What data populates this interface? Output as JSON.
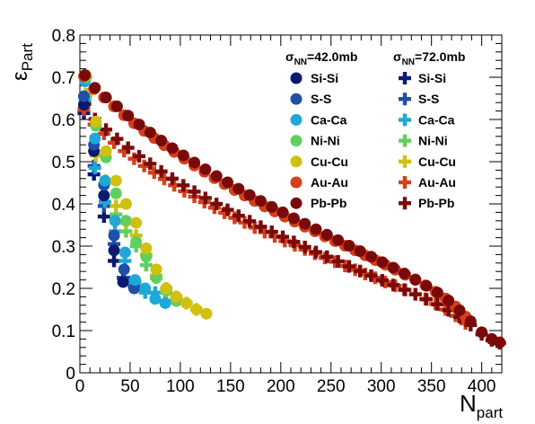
{
  "chart_data": {
    "type": "scatter",
    "xlabel_main": "N",
    "xlabel_sub": "part",
    "ylabel_main": "ε",
    "ylabel_sub": "Part",
    "xlim": [
      0,
      420
    ],
    "ylim": [
      0,
      0.8
    ],
    "xticks": [
      0,
      50,
      100,
      150,
      200,
      250,
      300,
      350,
      400
    ],
    "yticks": [
      0,
      0.1,
      0.2,
      0.3,
      0.4,
      0.5,
      0.6,
      0.7,
      0.8
    ],
    "legend_position": "top-right",
    "legend_groups": [
      {
        "head_main": "σ",
        "head_sub": "NN",
        "head_rest": "=42.0mb",
        "marker": "circle"
      },
      {
        "head_main": "σ",
        "head_sub": "NN",
        "head_rest": "=72.0mb",
        "marker": "cross"
      }
    ],
    "series": [
      {
        "name": "Si-Si",
        "color": "#0b1a6e",
        "circle": [
          [
            4,
            0.635
          ],
          [
            14,
            0.525
          ],
          [
            24,
            0.42
          ],
          [
            34,
            0.29
          ],
          [
            43,
            0.215
          ]
        ],
        "cross": [
          [
            4,
            0.615
          ],
          [
            14,
            0.47
          ],
          [
            24,
            0.37
          ],
          [
            34,
            0.265
          ],
          [
            43,
            0.225
          ]
        ]
      },
      {
        "name": "S-S",
        "color": "#1f4fa8",
        "circle": [
          [
            4,
            0.655
          ],
          [
            14,
            0.54
          ],
          [
            24,
            0.445
          ],
          [
            34,
            0.325
          ],
          [
            44,
            0.245
          ],
          [
            54,
            0.2
          ]
        ],
        "cross": [
          [
            4,
            0.625
          ],
          [
            14,
            0.49
          ],
          [
            24,
            0.395
          ],
          [
            34,
            0.305
          ],
          [
            44,
            0.225
          ],
          [
            54,
            0.205
          ]
        ]
      },
      {
        "name": "Ca-Ca",
        "color": "#1fa8d6",
        "circle": [
          [
            5,
            0.69
          ],
          [
            15,
            0.555
          ],
          [
            25,
            0.455
          ],
          [
            35,
            0.36
          ],
          [
            45,
            0.285
          ],
          [
            55,
            0.22
          ],
          [
            65,
            0.2
          ],
          [
            75,
            0.175
          ],
          [
            85,
            0.165
          ]
        ],
        "cross": [
          [
            5,
            0.645
          ],
          [
            15,
            0.485
          ],
          [
            25,
            0.405
          ],
          [
            35,
            0.335
          ],
          [
            45,
            0.265
          ],
          [
            55,
            0.215
          ],
          [
            65,
            0.19
          ],
          [
            75,
            0.19
          ],
          [
            85,
            0.17
          ]
        ]
      },
      {
        "name": "Ni-Ni",
        "color": "#5fcf5f",
        "circle": [
          [
            6,
            0.7
          ],
          [
            16,
            0.585
          ],
          [
            26,
            0.51
          ],
          [
            36,
            0.425
          ],
          [
            46,
            0.36
          ],
          [
            56,
            0.31
          ],
          [
            66,
            0.275
          ],
          [
            76,
            0.225
          ],
          [
            86,
            0.195
          ],
          [
            96,
            0.17
          ]
        ],
        "cross": [
          [
            6,
            0.655
          ],
          [
            16,
            0.515
          ],
          [
            26,
            0.45
          ],
          [
            36,
            0.375
          ],
          [
            46,
            0.335
          ],
          [
            56,
            0.3
          ],
          [
            66,
            0.255
          ],
          [
            76,
            0.225
          ],
          [
            86,
            0.19
          ],
          [
            96,
            0.175
          ]
        ]
      },
      {
        "name": "Cu-Cu",
        "color": "#d0c010",
        "circle": [
          [
            6,
            0.705
          ],
          [
            16,
            0.595
          ],
          [
            26,
            0.525
          ],
          [
            36,
            0.455
          ],
          [
            46,
            0.4
          ],
          [
            56,
            0.355
          ],
          [
            66,
            0.295
          ],
          [
            76,
            0.245
          ],
          [
            86,
            0.2
          ],
          [
            96,
            0.18
          ],
          [
            106,
            0.165
          ],
          [
            116,
            0.15
          ],
          [
            126,
            0.14
          ]
        ],
        "cross": [
          [
            6,
            0.66
          ],
          [
            16,
            0.515
          ],
          [
            26,
            0.455
          ],
          [
            36,
            0.395
          ],
          [
            46,
            0.355
          ],
          [
            56,
            0.325
          ],
          [
            66,
            0.28
          ],
          [
            76,
            0.23
          ],
          [
            86,
            0.2
          ],
          [
            96,
            0.18
          ],
          [
            106,
            0.165
          ],
          [
            116,
            0.15
          ]
        ]
      },
      {
        "name": "Au-Au",
        "color": "#d4401a",
        "circle": [
          [
            4,
            0.702
          ],
          [
            14,
            0.672
          ],
          [
            24,
            0.652
          ],
          [
            34,
            0.631
          ],
          [
            44,
            0.61
          ],
          [
            54,
            0.591
          ],
          [
            64,
            0.573
          ],
          [
            74,
            0.556
          ],
          [
            84,
            0.539
          ],
          [
            94,
            0.523
          ],
          [
            104,
            0.507
          ],
          [
            114,
            0.491
          ],
          [
            124,
            0.476
          ],
          [
            134,
            0.461
          ],
          [
            144,
            0.447
          ],
          [
            154,
            0.433
          ],
          [
            164,
            0.42
          ],
          [
            174,
            0.407
          ],
          [
            184,
            0.394
          ],
          [
            194,
            0.382
          ],
          [
            204,
            0.37
          ],
          [
            214,
            0.358
          ],
          [
            224,
            0.346
          ],
          [
            234,
            0.335
          ],
          [
            244,
            0.323
          ],
          [
            254,
            0.312
          ],
          [
            264,
            0.301
          ],
          [
            274,
            0.29
          ],
          [
            284,
            0.278
          ],
          [
            294,
            0.267
          ],
          [
            304,
            0.256
          ],
          [
            314,
            0.244
          ],
          [
            324,
            0.232
          ],
          [
            334,
            0.22
          ],
          [
            344,
            0.207
          ],
          [
            354,
            0.192
          ],
          [
            364,
            0.176
          ],
          [
            374,
            0.157
          ],
          [
            384,
            0.133
          ]
        ],
        "cross": [
          [
            4,
            0.623
          ],
          [
            14,
            0.588
          ],
          [
            24,
            0.566
          ],
          [
            34,
            0.545
          ],
          [
            44,
            0.525
          ],
          [
            54,
            0.507
          ],
          [
            64,
            0.49
          ],
          [
            74,
            0.474
          ],
          [
            84,
            0.459
          ],
          [
            94,
            0.444
          ],
          [
            104,
            0.43
          ],
          [
            114,
            0.417
          ],
          [
            124,
            0.404
          ],
          [
            134,
            0.391
          ],
          [
            144,
            0.379
          ],
          [
            154,
            0.367
          ],
          [
            164,
            0.356
          ],
          [
            174,
            0.344
          ],
          [
            184,
            0.333
          ],
          [
            194,
            0.323
          ],
          [
            204,
            0.312
          ],
          [
            214,
            0.302
          ],
          [
            224,
            0.292
          ],
          [
            234,
            0.282
          ],
          [
            244,
            0.272
          ],
          [
            254,
            0.263
          ],
          [
            264,
            0.253
          ],
          [
            274,
            0.244
          ],
          [
            284,
            0.234
          ],
          [
            294,
            0.225
          ],
          [
            304,
            0.215
          ],
          [
            314,
            0.206
          ],
          [
            324,
            0.196
          ],
          [
            334,
            0.186
          ],
          [
            344,
            0.175
          ],
          [
            354,
            0.163
          ],
          [
            364,
            0.15
          ],
          [
            374,
            0.135
          ],
          [
            384,
            0.117
          ]
        ]
      },
      {
        "name": "Pb-Pb",
        "color": "#7a0a0a",
        "circle": [
          [
            5,
            0.705
          ],
          [
            15,
            0.675
          ],
          [
            26,
            0.652
          ],
          [
            37,
            0.631
          ],
          [
            48,
            0.609
          ],
          [
            59,
            0.588
          ],
          [
            70,
            0.569
          ],
          [
            81,
            0.55
          ],
          [
            92,
            0.532
          ],
          [
            103,
            0.515
          ],
          [
            114,
            0.498
          ],
          [
            125,
            0.482
          ],
          [
            136,
            0.466
          ],
          [
            147,
            0.451
          ],
          [
            158,
            0.436
          ],
          [
            169,
            0.421
          ],
          [
            180,
            0.407
          ],
          [
            191,
            0.393
          ],
          [
            202,
            0.38
          ],
          [
            213,
            0.366
          ],
          [
            224,
            0.353
          ],
          [
            235,
            0.34
          ],
          [
            246,
            0.327
          ],
          [
            257,
            0.314
          ],
          [
            268,
            0.301
          ],
          [
            279,
            0.288
          ],
          [
            290,
            0.275
          ],
          [
            301,
            0.262
          ],
          [
            312,
            0.249
          ],
          [
            323,
            0.235
          ],
          [
            334,
            0.221
          ],
          [
            345,
            0.206
          ],
          [
            356,
            0.19
          ],
          [
            367,
            0.171
          ],
          [
            378,
            0.148
          ],
          [
            389,
            0.122
          ],
          [
            400,
            0.096
          ],
          [
            410,
            0.08
          ],
          [
            418,
            0.072
          ]
        ],
        "cross": [
          [
            5,
            0.636
          ],
          [
            15,
            0.601
          ],
          [
            26,
            0.576
          ],
          [
            37,
            0.554
          ],
          [
            48,
            0.533
          ],
          [
            59,
            0.513
          ],
          [
            70,
            0.495
          ],
          [
            81,
            0.477
          ],
          [
            92,
            0.46
          ],
          [
            103,
            0.444
          ],
          [
            114,
            0.429
          ],
          [
            125,
            0.414
          ],
          [
            136,
            0.4
          ],
          [
            147,
            0.386
          ],
          [
            158,
            0.372
          ],
          [
            169,
            0.359
          ],
          [
            180,
            0.346
          ],
          [
            191,
            0.334
          ],
          [
            202,
            0.322
          ],
          [
            213,
            0.31
          ],
          [
            224,
            0.298
          ],
          [
            235,
            0.286
          ],
          [
            246,
            0.275
          ],
          [
            257,
            0.264
          ],
          [
            268,
            0.252
          ],
          [
            279,
            0.241
          ],
          [
            290,
            0.23
          ],
          [
            301,
            0.219
          ],
          [
            312,
            0.208
          ],
          [
            323,
            0.197
          ],
          [
            334,
            0.186
          ],
          [
            345,
            0.174
          ],
          [
            356,
            0.162
          ],
          [
            367,
            0.148
          ],
          [
            378,
            0.132
          ],
          [
            389,
            0.113
          ],
          [
            400,
            0.091
          ],
          [
            410,
            0.077
          ],
          [
            418,
            0.07
          ]
        ]
      }
    ]
  }
}
